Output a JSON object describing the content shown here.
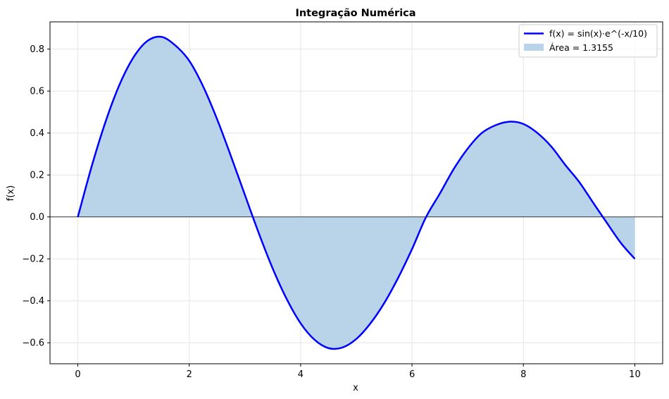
{
  "chart_data": {
    "type": "line",
    "title": "Integração Numérica",
    "xlabel": "x",
    "ylabel": "f(x)",
    "xlim": [
      -0.5,
      10.5
    ],
    "ylim": [
      -0.7,
      0.93
    ],
    "xticks": [
      0,
      2,
      4,
      6,
      8,
      10
    ],
    "xtick_labels": [
      "0",
      "2",
      "4",
      "6",
      "8",
      "10"
    ],
    "yticks": [
      -0.6,
      -0.4,
      -0.2,
      0.0,
      0.2,
      0.4,
      0.6,
      0.8
    ],
    "ytick_labels": [
      "−0.6",
      "−0.4",
      "−0.2",
      "0.0",
      "0.2",
      "0.4",
      "0.6",
      "0.8"
    ],
    "grid": true,
    "legend_position": "top-right",
    "series": [
      {
        "name": "f(x) = sin(x)·e^(-x/10)",
        "kind": "line",
        "color": "#0000ff",
        "x": [
          0,
          0.25,
          0.5,
          0.75,
          1.0,
          1.25,
          1.5,
          1.75,
          2.0,
          2.25,
          2.5,
          2.75,
          3.0,
          3.25,
          3.5,
          3.75,
          4.0,
          4.25,
          4.5,
          4.75,
          5.0,
          5.25,
          5.5,
          5.75,
          6.0,
          6.25,
          6.5,
          6.75,
          7.0,
          7.25,
          7.5,
          7.75,
          8.0,
          8.25,
          8.5,
          8.75,
          9.0,
          9.25,
          9.5,
          9.75,
          10.0
        ],
        "y": [
          0.0,
          0.2427,
          0.456,
          0.6317,
          0.7614,
          0.8394,
          0.8586,
          0.8175,
          0.7445,
          0.622,
          0.466,
          0.2887,
          0.1045,
          -0.0783,
          -0.247,
          -0.3915,
          -0.5073,
          -0.5856,
          -0.6256,
          -0.6226,
          -0.5817,
          -0.5087,
          -0.4111,
          -0.2908,
          -0.1533,
          -0.0017,
          0.1116,
          0.229,
          0.3258,
          0.3995,
          0.4372,
          0.4541,
          0.4431,
          0.4005,
          0.3356,
          0.2484,
          0.1671,
          0.0687,
          -0.029,
          -0.1243,
          -0.2001
        ]
      },
      {
        "name": "Área = 1.3155",
        "kind": "area",
        "color": "#b9d4e8"
      }
    ],
    "hline": 0
  }
}
